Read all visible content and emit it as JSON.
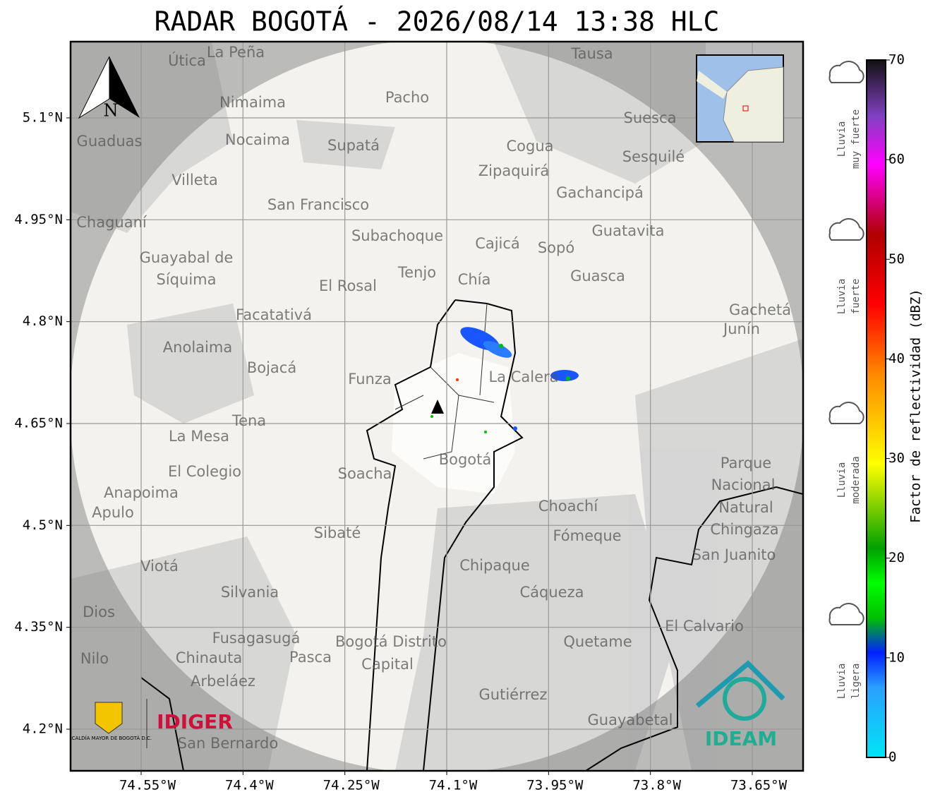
{
  "title": "RADAR BOGOTÁ - 2026/08/14 13:38 HLC",
  "map": {
    "lon_ticks": [
      {
        "value": -74.55,
        "label": "74.55°W"
      },
      {
        "value": -74.4,
        "label": "74.4°W"
      },
      {
        "value": -74.25,
        "label": "74.25°W"
      },
      {
        "value": -74.1,
        "label": "74.1°W"
      },
      {
        "value": -73.95,
        "label": "73.95°W"
      },
      {
        "value": -73.8,
        "label": "73.8°W"
      },
      {
        "value": -73.65,
        "label": "73.65°W"
      }
    ],
    "lat_ticks": [
      {
        "value": 5.1,
        "label": "5.1°N"
      },
      {
        "value": 4.95,
        "label": "4.95°N"
      },
      {
        "value": 4.8,
        "label": "4.8°N"
      },
      {
        "value": 4.65,
        "label": "4.65°N"
      },
      {
        "value": 4.5,
        "label": "4.5°N"
      },
      {
        "value": 4.35,
        "label": "4.35°N"
      },
      {
        "value": 4.2,
        "label": "4.2°N"
      }
    ],
    "north": "N",
    "places": [
      "La Peña",
      "Útica",
      "Tausa",
      "Pacho",
      "Nimaima",
      "Suesca",
      "Guaduas",
      "Nocaima",
      "Supatá",
      "Cogua",
      "Sesquilé",
      "Zipaquirá",
      "Villeta",
      "Gachancipá",
      "San Francisco",
      "Chaguaní",
      "Guatavita",
      "Subachoque",
      "Cajicá",
      "Sopó",
      "Guayabal de",
      "Síquima",
      "Tenjo",
      "Chía",
      "Guasca",
      "El Rosal",
      "Facatativá",
      "Gachetá",
      "Junín",
      "Anolaima",
      "Bojacá",
      "Funza",
      "La Calera",
      "Tena",
      "La Mesa",
      "Bogotá",
      "Soacha",
      "El Colegio",
      "Parque",
      "Nacional",
      "Natural",
      "Chingaza",
      "Anapoima",
      "Apulo",
      "Choachí",
      "Sibaté",
      "Fómeque",
      "San Juanito",
      "Chipaque",
      "Viotá",
      "Silvania",
      "Cáqueza",
      "Dios",
      "El Calvario",
      "Fusagasugá",
      "Bogotá Distrito",
      "Capital",
      "Quetame",
      "Nilo",
      "Chinauta",
      "Pasca",
      "Arbeláez",
      "Gutiérrez",
      "Guayabetal",
      "San Bernardo"
    ]
  },
  "logos": {
    "alcaldia": "ALCALDÍA MAYOR DE BOGOTÁ D.C.",
    "idiger": "IDIGER",
    "ideam": "IDEAM"
  },
  "colorbar": {
    "label": "Factor de reflectividad (dBZ)",
    "range": [
      0,
      70
    ],
    "ticks": [
      0,
      10,
      20,
      30,
      40,
      50,
      60,
      70
    ]
  },
  "rain_levels": [
    [
      "Lluvia",
      "muy fuerte"
    ],
    [
      "Lluvia",
      "fuerte"
    ],
    [
      "Lluvia",
      "moderada"
    ],
    [
      "Lluvia",
      "ligera"
    ]
  ]
}
